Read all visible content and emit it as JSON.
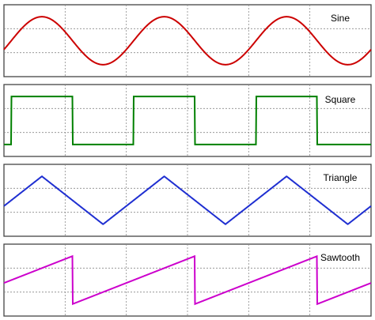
{
  "chart_data": [
    {
      "type": "line",
      "label": "Sine",
      "color": "#cc0000",
      "function": "sine",
      "periods": 3,
      "x_divisions": 6,
      "y_divisions": 3,
      "grid": true,
      "grid_style": "dotted"
    },
    {
      "type": "line",
      "label": "Square",
      "color": "#008000",
      "function": "square",
      "periods": 3,
      "x_divisions": 6,
      "y_divisions": 3,
      "grid": true,
      "grid_style": "dotted"
    },
    {
      "type": "line",
      "label": "Triangle",
      "color": "#1f2fd1",
      "function": "triangle",
      "periods": 3,
      "x_divisions": 6,
      "y_divisions": 3,
      "grid": true,
      "grid_style": "dotted"
    },
    {
      "type": "line",
      "label": "Sawtooth",
      "color": "#cc00cc",
      "function": "sawtooth",
      "periods": 3,
      "x_divisions": 6,
      "y_divisions": 3,
      "grid": true,
      "grid_style": "dotted"
    }
  ]
}
